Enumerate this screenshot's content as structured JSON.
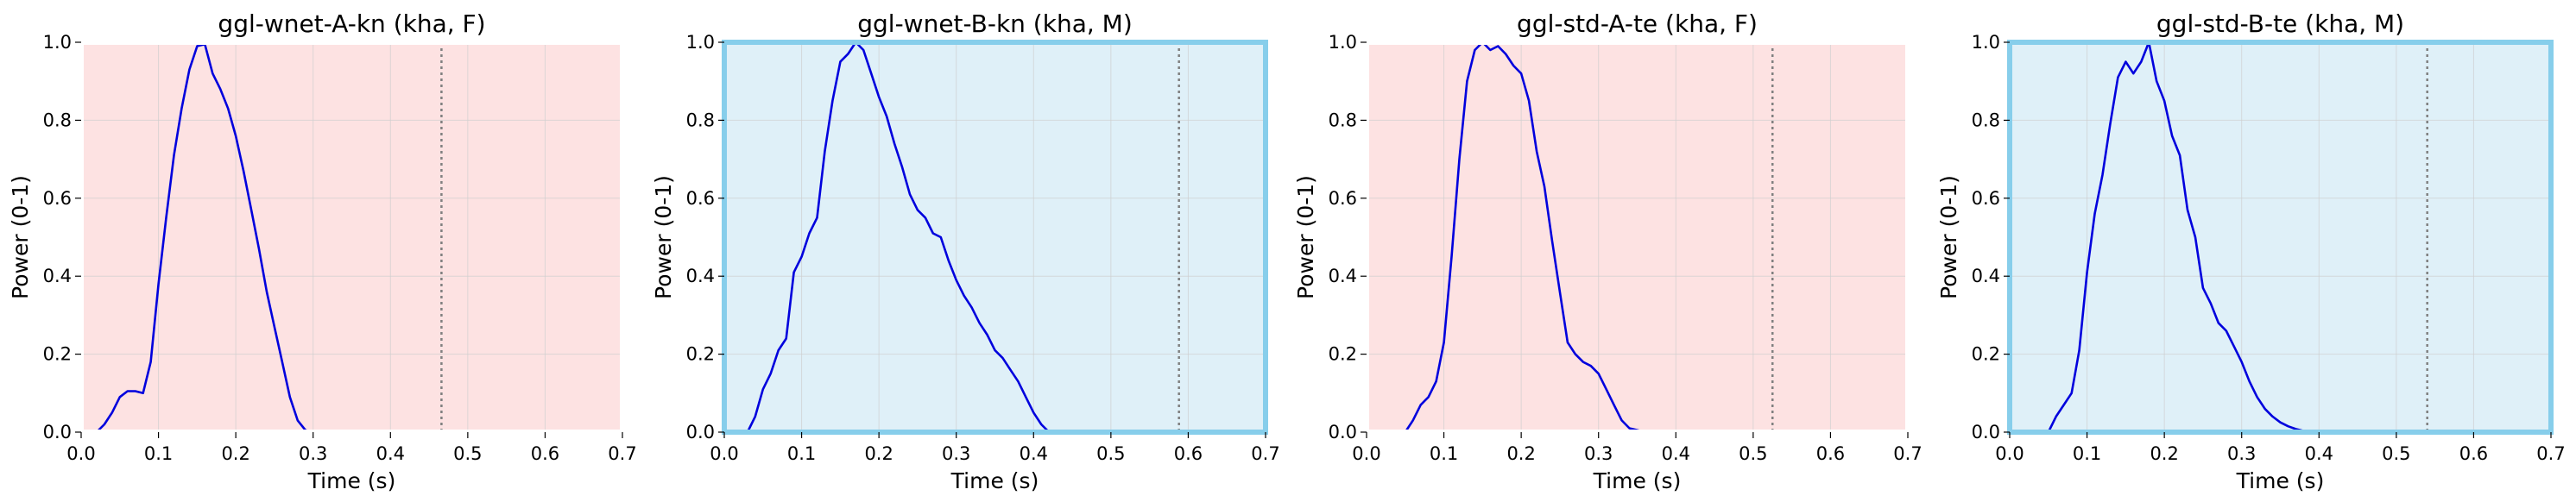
{
  "chart_data": [
    {
      "type": "line",
      "title": "ggl-wnet-A-kn (kha, F)",
      "xlabel": "Time (s)",
      "ylabel": "Power (0-1)",
      "xlim": [
        0.0,
        0.7
      ],
      "ylim": [
        0.0,
        1.0
      ],
      "xticks": [
        "0.0",
        "0.1",
        "0.2",
        "0.3",
        "0.4",
        "0.5",
        "0.6",
        "0.7"
      ],
      "yticks": [
        "0.0",
        "0.2",
        "0.4",
        "0.6",
        "0.8",
        "1.0"
      ],
      "grid": true,
      "background": "#fde2e2",
      "frame_color": "#ffffff",
      "line_color": "#0000dd",
      "vline_x": 0.466,
      "series": [
        {
          "x": [
            0.0,
            0.02,
            0.03,
            0.04,
            0.05,
            0.06,
            0.07,
            0.08,
            0.09,
            0.1,
            0.11,
            0.12,
            0.13,
            0.14,
            0.15,
            0.16,
            0.17,
            0.18,
            0.19,
            0.2,
            0.21,
            0.22,
            0.23,
            0.24,
            0.25,
            0.26,
            0.27,
            0.28,
            0.29,
            0.3,
            0.32,
            0.34,
            0.36,
            0.38,
            0.4,
            0.42,
            0.44,
            0.46
          ],
          "y": [
            0.0,
            0.0,
            0.02,
            0.05,
            0.09,
            0.105,
            0.105,
            0.1,
            0.18,
            0.38,
            0.55,
            0.71,
            0.83,
            0.93,
            0.99,
            0.995,
            0.92,
            0.88,
            0.83,
            0.76,
            0.67,
            0.57,
            0.47,
            0.36,
            0.27,
            0.18,
            0.09,
            0.03,
            0.005,
            0.0,
            0.0,
            0.0,
            0.0,
            0.0,
            0.0,
            0.0,
            0.0,
            0.0
          ]
        }
      ]
    },
    {
      "type": "line",
      "title": "ggl-wnet-B-kn (kha, M)",
      "xlabel": "Time (s)",
      "ylabel": "Power (0-1)",
      "xlim": [
        0.0,
        0.7
      ],
      "ylim": [
        0.0,
        1.0
      ],
      "xticks": [
        "0.0",
        "0.1",
        "0.2",
        "0.3",
        "0.4",
        "0.5",
        "0.6",
        "0.7"
      ],
      "yticks": [
        "0.0",
        "0.2",
        "0.4",
        "0.6",
        "0.8",
        "1.0"
      ],
      "grid": true,
      "background": "#dff0f8",
      "frame_color": "#87ceeb",
      "line_color": "#0000dd",
      "vline_x": 0.588,
      "series": [
        {
          "x": [
            0.03,
            0.04,
            0.05,
            0.06,
            0.07,
            0.08,
            0.09,
            0.1,
            0.11,
            0.12,
            0.13,
            0.14,
            0.15,
            0.16,
            0.17,
            0.18,
            0.19,
            0.2,
            0.21,
            0.22,
            0.23,
            0.24,
            0.25,
            0.26,
            0.27,
            0.28,
            0.29,
            0.3,
            0.31,
            0.32,
            0.33,
            0.34,
            0.35,
            0.36,
            0.37,
            0.38,
            0.39,
            0.4,
            0.41,
            0.42
          ],
          "y": [
            0.0,
            0.04,
            0.11,
            0.15,
            0.21,
            0.24,
            0.41,
            0.45,
            0.51,
            0.55,
            0.72,
            0.85,
            0.95,
            0.97,
            1.0,
            0.98,
            0.92,
            0.86,
            0.81,
            0.74,
            0.68,
            0.61,
            0.57,
            0.55,
            0.51,
            0.5,
            0.44,
            0.39,
            0.35,
            0.32,
            0.28,
            0.25,
            0.21,
            0.19,
            0.16,
            0.13,
            0.09,
            0.05,
            0.02,
            0.0
          ]
        }
      ]
    },
    {
      "type": "line",
      "title": "ggl-std-A-te (kha, F)",
      "xlabel": "Time (s)",
      "ylabel": "Power (0-1)",
      "xlim": [
        0.0,
        0.7
      ],
      "ylim": [
        0.0,
        1.0
      ],
      "xticks": [
        "0.0",
        "0.1",
        "0.2",
        "0.3",
        "0.4",
        "0.5",
        "0.6",
        "0.7"
      ],
      "yticks": [
        "0.0",
        "0.2",
        "0.4",
        "0.6",
        "0.8",
        "1.0"
      ],
      "grid": true,
      "background": "#fde2e2",
      "frame_color": "#ffffff",
      "line_color": "#0000dd",
      "vline_x": 0.525,
      "series": [
        {
          "x": [
            0.0,
            0.05,
            0.06,
            0.07,
            0.08,
            0.09,
            0.1,
            0.11,
            0.12,
            0.13,
            0.14,
            0.15,
            0.16,
            0.17,
            0.18,
            0.19,
            0.2,
            0.21,
            0.22,
            0.23,
            0.24,
            0.25,
            0.26,
            0.27,
            0.28,
            0.29,
            0.3,
            0.31,
            0.32,
            0.33,
            0.34,
            0.35,
            0.36,
            0.37,
            0.38,
            0.4,
            0.45,
            0.5,
            0.52
          ],
          "y": [
            0.0,
            0.0,
            0.03,
            0.07,
            0.09,
            0.13,
            0.23,
            0.45,
            0.7,
            0.9,
            0.98,
            1.0,
            0.98,
            0.99,
            0.97,
            0.94,
            0.92,
            0.85,
            0.72,
            0.63,
            0.49,
            0.36,
            0.23,
            0.2,
            0.18,
            0.17,
            0.15,
            0.11,
            0.07,
            0.03,
            0.01,
            0.005,
            0.0,
            0.0,
            0.0,
            0.0,
            0.0,
            0.0,
            0.0
          ]
        }
      ]
    },
    {
      "type": "line",
      "title": "ggl-std-B-te (kha, M)",
      "xlabel": "Time (s)",
      "ylabel": "Power (0-1)",
      "xlim": [
        0.0,
        0.7
      ],
      "ylim": [
        0.0,
        1.0
      ],
      "xticks": [
        "0.0",
        "0.1",
        "0.2",
        "0.3",
        "0.4",
        "0.5",
        "0.6",
        "0.7"
      ],
      "yticks": [
        "0.0",
        "0.2",
        "0.4",
        "0.6",
        "0.8",
        "1.0"
      ],
      "grid": true,
      "background": "#dff0f8",
      "frame_color": "#87ceeb",
      "line_color": "#0000dd",
      "vline_x": 0.54,
      "series": [
        {
          "x": [
            0.05,
            0.06,
            0.07,
            0.08,
            0.09,
            0.1,
            0.11,
            0.12,
            0.13,
            0.14,
            0.15,
            0.16,
            0.17,
            0.18,
            0.19,
            0.2,
            0.21,
            0.22,
            0.23,
            0.24,
            0.25,
            0.26,
            0.27,
            0.28,
            0.29,
            0.3,
            0.31,
            0.32,
            0.33,
            0.34,
            0.35,
            0.36,
            0.37,
            0.38,
            0.39
          ],
          "y": [
            0.0,
            0.04,
            0.07,
            0.1,
            0.21,
            0.41,
            0.56,
            0.66,
            0.79,
            0.91,
            0.95,
            0.92,
            0.95,
            1.0,
            0.9,
            0.85,
            0.76,
            0.71,
            0.57,
            0.5,
            0.37,
            0.33,
            0.28,
            0.26,
            0.22,
            0.18,
            0.13,
            0.09,
            0.06,
            0.04,
            0.025,
            0.015,
            0.008,
            0.003,
            0.0
          ]
        }
      ]
    }
  ]
}
